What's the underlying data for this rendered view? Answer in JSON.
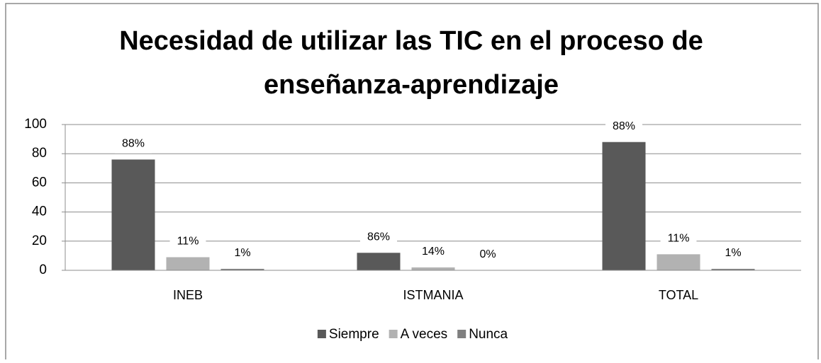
{
  "chart_data": {
    "type": "bar",
    "title": "Necesidad de utilizar las TIC en el proceso de enseñanza-aprendizaje",
    "categories": [
      "INEB",
      "ISTMANIA",
      "TOTAL"
    ],
    "series": [
      {
        "name": "Siempre",
        "color": "#595959",
        "values": [
          76,
          12,
          88
        ],
        "value_labels": [
          "88%",
          "86%",
          "88%"
        ]
      },
      {
        "name": "A veces",
        "color": "#b2b2b2",
        "values": [
          9,
          2,
          11
        ],
        "value_labels": [
          "11%",
          "14%",
          "11%"
        ]
      },
      {
        "name": "Nunca",
        "color": "#7f7f7f",
        "values": [
          1,
          0,
          1
        ],
        "value_labels": [
          "1%",
          "0%",
          "1%"
        ]
      }
    ],
    "ylim": [
      0,
      100
    ],
    "yticks": [
      0,
      20,
      40,
      60,
      80,
      100
    ],
    "grid": true,
    "legend": "bottom"
  }
}
